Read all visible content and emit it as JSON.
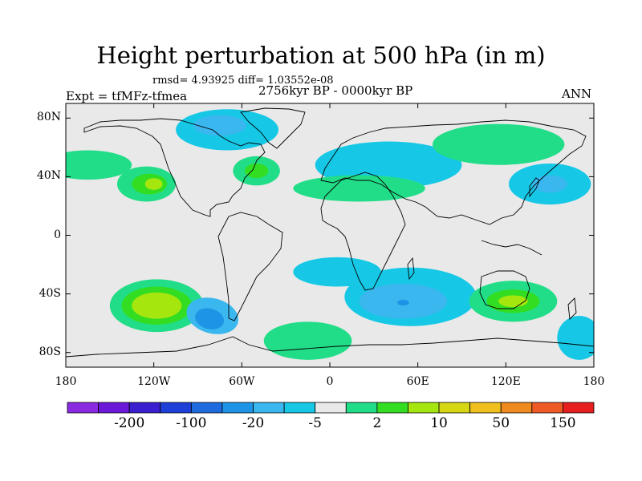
{
  "title": "Height perturbation at 500 hPa (in m)",
  "stats_text": "rmsd= 4.93925 diff= 1.03552e-08",
  "experiment": "Expt = tfMFz-tfmea",
  "period": "2756kyr BP - 0000kyr BP",
  "season": "ANN",
  "lat_ticks": [
    {
      "value": 80,
      "label": "80N"
    },
    {
      "value": 40,
      "label": "40N"
    },
    {
      "value": 0,
      "label": "0"
    },
    {
      "value": -40,
      "label": "40S"
    },
    {
      "value": -80,
      "label": "80S"
    }
  ],
  "lon_ticks": [
    {
      "value": -180,
      "label": "180"
    },
    {
      "value": -120,
      "label": "120W"
    },
    {
      "value": -60,
      "label": "60W"
    },
    {
      "value": 0,
      "label": "0"
    },
    {
      "value": 60,
      "label": "60E"
    },
    {
      "value": 120,
      "label": "120E"
    },
    {
      "value": 180,
      "label": "180"
    }
  ],
  "colorbar": {
    "colors": [
      "#8a2be2",
      "#6a19d8",
      "#3a1fd0",
      "#1e40d8",
      "#1e6be0",
      "#1e94e6",
      "#3ab7ee",
      "#16c8e6",
      "#e9e9e9",
      "#22dd88",
      "#33dd22",
      "#a6e60f",
      "#d6d612",
      "#eebf1d",
      "#ee8a1e",
      "#ee5a24",
      "#e61e1e"
    ],
    "labels": [
      {
        "after_bin": 2,
        "text": "-200"
      },
      {
        "after_bin": 4,
        "text": "-100"
      },
      {
        "after_bin": 6,
        "text": "-20"
      },
      {
        "after_bin": 8,
        "text": "-5"
      },
      {
        "after_bin": 10,
        "text": "2"
      },
      {
        "after_bin": 12,
        "text": "10"
      },
      {
        "after_bin": 14,
        "text": "50"
      },
      {
        "after_bin": 16,
        "text": "150"
      }
    ]
  },
  "anomaly_regions": [
    {
      "lon": -118,
      "lat": -48,
      "rlon": 32,
      "rlat": 18,
      "level": 9,
      "rotate": 0
    },
    {
      "lon": -118,
      "lat": -48,
      "rlon": 24,
      "rlat": 13,
      "level": 10,
      "rotate": 0
    },
    {
      "lon": -118,
      "lat": -48,
      "rlon": 17,
      "rlat": 9,
      "level": 11,
      "rotate": 0
    },
    {
      "lon": -80,
      "lat": -55,
      "rlon": 18,
      "rlat": 12,
      "level": 6,
      "rotate": 15
    },
    {
      "lon": -82,
      "lat": -57,
      "rlon": 10,
      "rlat": 7,
      "level": 5,
      "rotate": 15
    },
    {
      "lon": -125,
      "lat": 35,
      "rlon": 20,
      "rlat": 12,
      "level": 9,
      "rotate": 0
    },
    {
      "lon": -123,
      "lat": 35,
      "rlon": 12,
      "rlat": 7,
      "level": 10,
      "rotate": 0
    },
    {
      "lon": -120,
      "lat": 35,
      "rlon": 6,
      "rlat": 4,
      "level": 11,
      "rotate": 0
    },
    {
      "lon": -70,
      "lat": 72,
      "rlon": 35,
      "rlat": 14,
      "level": 7,
      "rotate": 0
    },
    {
      "lon": -75,
      "lat": 75,
      "rlon": 18,
      "rlat": 7,
      "level": 6,
      "rotate": 0
    },
    {
      "lon": -50,
      "lat": 44,
      "rlon": 16,
      "rlat": 10,
      "level": 9,
      "rotate": 0
    },
    {
      "lon": -50,
      "lat": 44,
      "rlon": 8,
      "rlat": 5,
      "level": 10,
      "rotate": 0
    },
    {
      "lon": 40,
      "lat": 48,
      "rlon": 50,
      "rlat": 16,
      "level": 7,
      "rotate": 0
    },
    {
      "lon": 20,
      "lat": 32,
      "rlon": 45,
      "rlat": 9,
      "level": 9,
      "rotate": 0
    },
    {
      "lon": 115,
      "lat": 62,
      "rlon": 45,
      "rlat": 14,
      "level": 9,
      "rotate": 0
    },
    {
      "lon": 150,
      "lat": 35,
      "rlon": 28,
      "rlat": 14,
      "level": 7,
      "rotate": 0
    },
    {
      "lon": 150,
      "lat": 35,
      "rlon": 12,
      "rlat": 6,
      "level": 6,
      "rotate": 0
    },
    {
      "lon": -165,
      "lat": 48,
      "rlon": 30,
      "rlat": 10,
      "level": 9,
      "rotate": 0
    },
    {
      "lon": 55,
      "lat": -42,
      "rlon": 45,
      "rlat": 20,
      "level": 7,
      "rotate": 0
    },
    {
      "lon": 50,
      "lat": -45,
      "rlon": 30,
      "rlat": 12,
      "level": 6,
      "rotate": 0
    },
    {
      "lon": 50,
      "lat": -46,
      "rlon": 4,
      "rlat": 2,
      "level": 5,
      "rotate": 0
    },
    {
      "lon": 125,
      "lat": -45,
      "rlon": 30,
      "rlat": 14,
      "level": 9,
      "rotate": 0
    },
    {
      "lon": 125,
      "lat": -45,
      "rlon": 18,
      "rlat": 8,
      "level": 10,
      "rotate": 0
    },
    {
      "lon": 125,
      "lat": -45,
      "rlon": 10,
      "rlat": 4,
      "level": 11,
      "rotate": 0
    },
    {
      "lon": 5,
      "lat": -25,
      "rlon": 30,
      "rlat": 10,
      "level": 7,
      "rotate": 0
    },
    {
      "lon": -15,
      "lat": -72,
      "rlon": 30,
      "rlat": 13,
      "level": 9,
      "rotate": 0
    },
    {
      "lon": 170,
      "lat": -70,
      "rlon": 15,
      "rlat": 15,
      "level": 7,
      "rotate": 0
    }
  ],
  "map_area": {
    "lon_min": -180,
    "lon_max": 180,
    "lat_min": -90,
    "lat_max": 90
  }
}
